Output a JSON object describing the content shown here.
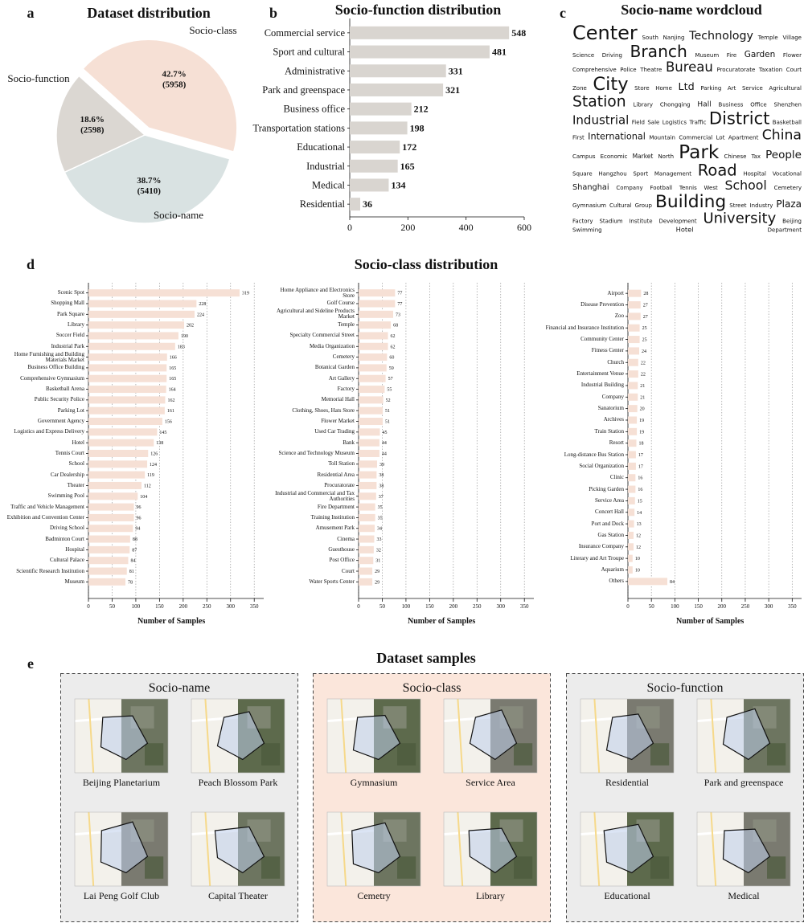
{
  "chart_data": [
    {
      "type": "pie",
      "panel": "a",
      "title": "Dataset distribution",
      "categories": [
        "Socio-class",
        "Socio-name",
        "Socio-function"
      ],
      "values": [
        42.7,
        38.7,
        18.6
      ],
      "value_labels": [
        "42.7%",
        "38.7%",
        "18.6%"
      ],
      "counts": [
        5958,
        5410,
        2598
      ],
      "count_labels": [
        "(5958)",
        "(5410)",
        "(2598)"
      ],
      "colors": [
        "#f6e0d5",
        "#d9e2e2",
        "#dbd7d2"
      ],
      "explode": [
        true,
        false,
        false
      ]
    },
    {
      "type": "bar",
      "orientation": "horizontal",
      "panel": "b",
      "title": "Socio-function distribution",
      "categories": [
        "Commercial service",
        "Sport and cultural",
        "Administrative",
        "Park and greenspace",
        "Business office",
        "Transportation stations",
        "Educational",
        "Industrial",
        "Medical",
        "Residential"
      ],
      "values": [
        548,
        481,
        331,
        321,
        212,
        198,
        172,
        165,
        134,
        36
      ],
      "color": "#d9d5d0",
      "xlim": [
        0,
        600
      ],
      "xticks": [
        0,
        200,
        400,
        600
      ],
      "grid": false
    },
    {
      "type": "wordcloud",
      "panel": "c",
      "title": "Socio-name wordcloud",
      "words": [
        "Center",
        "Park",
        "City",
        "Building",
        "District",
        "Branch",
        "Road",
        "Station",
        "University",
        "China",
        "Bureau",
        "School",
        "Industrial",
        "Technology",
        "People",
        "Ltd",
        "Plaza",
        "International",
        "Garden",
        "Shanghai",
        "Hall",
        "Hotel",
        "Market",
        "Court",
        "Cultural",
        "Logistics",
        "Science",
        "Sport",
        "Service",
        "Institute",
        "Lot",
        "Police",
        "Tennis",
        "Office",
        "South",
        "Chinese",
        "Store",
        "Street",
        "Basketball",
        "Museum",
        "Hospital",
        "Library",
        "Beijing",
        "Campus",
        "Procuratorate",
        "Cemetery",
        "Field",
        "Temple",
        "Square",
        "Parking",
        "Factory",
        "Mountain",
        "Flower",
        "Company",
        "Business",
        "Department",
        "North",
        "Zone",
        "Group",
        "Traffic",
        "Driving",
        "Management",
        "Agricultural",
        "Development",
        "Apartment",
        "Theatre",
        "West",
        "Shenzhen",
        "Nanjing",
        "Tax",
        "Home",
        "Industry",
        "First",
        "Fire",
        "Vocational",
        "Chongqing",
        "Swimming",
        "Economic",
        "Taxation",
        "Gymnasium",
        "Sale",
        "Village",
        "Hangzhou",
        "Art",
        "Stadium",
        "Commercial",
        "Comprehensive",
        "Football"
      ],
      "colors": [
        "#1b6d72",
        "#3b9b97",
        "#79c2ba",
        "#b5ddd6"
      ]
    },
    {
      "type": "bar",
      "orientation": "horizontal",
      "panel": "d",
      "title": "Socio-class distribution",
      "x_label": "Number of Samples",
      "categories": [
        "Scenic Spot",
        "Shopping Mall",
        "Park Square",
        "Library",
        "Soccer Field",
        "Industrial Park",
        "Home Furnishing and Building Materials Market",
        "Business Office Building",
        "Comprehensive Gymnasium",
        "Basketball Arena",
        "Public Security Police",
        "Parking Lot",
        "Government Agency",
        "Logistics and Express Delivery",
        "Hotel",
        "Tennis Court",
        "School",
        "Car Dealership",
        "Theater",
        "Swimming Pool",
        "Traffic and Vehicle Management",
        "Exhibition and Convention Center",
        "Driving School",
        "Badminton Court",
        "Hospital",
        "Cultural Palace",
        "Scientific Research Institution",
        "Museum"
      ],
      "values": [
        319,
        228,
        224,
        202,
        190,
        183,
        166,
        165,
        165,
        164,
        162,
        161,
        156,
        145,
        138,
        126,
        124,
        119,
        112,
        104,
        96,
        96,
        94,
        88,
        87,
        84,
        81,
        78
      ],
      "color": "#f6e0d5",
      "xlim": [
        0,
        370
      ],
      "xticks": [
        0,
        50,
        100,
        150,
        200,
        250,
        300,
        350
      ],
      "grid": true
    },
    {
      "type": "bar",
      "orientation": "horizontal",
      "x_label": "Number of Samples",
      "categories": [
        "Home Appliance and Electronics Store",
        "Golf Course",
        "Agricultural and Sideline Products Market",
        "Temple",
        "Specialty Commercial Street",
        "Media Organization",
        "Cemetery",
        "Botanical Garden",
        "Art Gallery",
        "Factory",
        "Memorial Hall",
        "Clothing, Shoes, Hats Store",
        "Flower Market",
        "Used Car Trading",
        "Bank",
        "Science and Technology Museum",
        "Toll Station",
        "Residential Area",
        "Procuratorate",
        "Industrial and Commercial and Tax Authorities",
        "Fire Department",
        "Training Institution",
        "Amusement Park",
        "Cinema",
        "Guesthouse",
        "Post Office",
        "Court",
        "Water Sports Center"
      ],
      "values": [
        77,
        77,
        73,
        68,
        62,
        62,
        60,
        59,
        57,
        55,
        52,
        51,
        51,
        45,
        44,
        44,
        39,
        38,
        38,
        37,
        35,
        35,
        34,
        33,
        32,
        31,
        29,
        29
      ],
      "color": "#f6e0d5",
      "xlim": [
        0,
        370
      ],
      "xticks": [
        0,
        50,
        100,
        150,
        200,
        250,
        300,
        350
      ],
      "grid": true
    },
    {
      "type": "bar",
      "orientation": "horizontal",
      "x_label": "Number of Samples",
      "categories": [
        "Airport",
        "Disease Prevention",
        "Zoo",
        "Financial and Insurance Institution",
        "Community Center",
        "Fitness Center",
        "Church",
        "Entertainment Venue",
        "Industrial Building",
        "Company",
        "Sanatorium",
        "Archives",
        "Train Station",
        "Resort",
        "Long-distance Bus Station",
        "Social Organization",
        "Clinic",
        "Picking Garden",
        "Service Area",
        "Concert Hall",
        "Port and Dock",
        "Gas Station",
        "Insurance Company",
        "Literary and Art Troupe",
        "Aquarium",
        "Others"
      ],
      "values": [
        28,
        27,
        27,
        25,
        25,
        24,
        22,
        22,
        21,
        21,
        20,
        19,
        19,
        18,
        17,
        17,
        16,
        16,
        15,
        14,
        13,
        12,
        12,
        10,
        10,
        84
      ],
      "color": "#f6e0d5",
      "xlim": [
        0,
        370
      ],
      "xticks": [
        0,
        50,
        100,
        150,
        200,
        250,
        300,
        350
      ],
      "grid": true
    },
    {
      "type": "image-grid",
      "panel": "e",
      "title": "Dataset samples",
      "groups": [
        {
          "name": "Socio-name",
          "items": [
            "Beijing Planetarium",
            "Peach Blossom Park",
            "Lai Peng Golf Club",
            "Capital Theater"
          ]
        },
        {
          "name": "Socio-class",
          "items": [
            "Gymnasium",
            "Service Area",
            "Cemetry",
            "Library"
          ]
        },
        {
          "name": "Socio-function",
          "items": [
            "Residential",
            "Park and greenspace",
            "Educational",
            "Medical"
          ]
        }
      ],
      "colors": [
        "#ececec",
        "#fbe6db",
        "#ececec"
      ]
    }
  ]
}
